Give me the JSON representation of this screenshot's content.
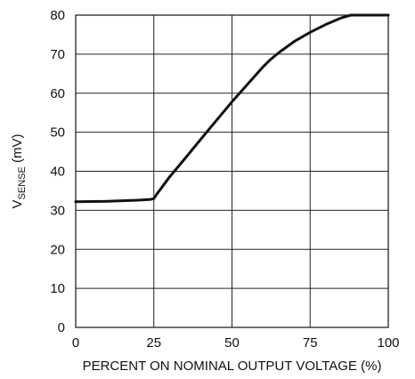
{
  "chart_data": {
    "type": "line",
    "xlabel": "PERCENT ON NOMINAL OUTPUT VOLTAGE (%)",
    "ylabel_main": "V",
    "ylabel_sub": "SENSE",
    "ylabel_unit": " (mV)",
    "xlim": [
      0,
      100
    ],
    "ylim": [
      0,
      80
    ],
    "x_ticks": [
      0,
      25,
      50,
      75,
      100
    ],
    "y_ticks": [
      0,
      10,
      20,
      30,
      40,
      50,
      60,
      70,
      80
    ],
    "x_tick_labels": [
      "0",
      "25",
      "50",
      "75",
      "100"
    ],
    "y_tick_labels": [
      "0",
      "10",
      "20",
      "30",
      "40",
      "50",
      "60",
      "70",
      "80"
    ],
    "grid": true,
    "series": [
      {
        "x": [
          0,
          10,
          20,
          24,
          25,
          26,
          30,
          35,
          40,
          45,
          50,
          55,
          60,
          62,
          65,
          70,
          75,
          80,
          85,
          88,
          90,
          95,
          100
        ],
        "y": [
          32.2,
          32.3,
          32.6,
          32.8,
          33.0,
          34.2,
          38.5,
          43.3,
          48.2,
          53.0,
          57.8,
          62.3,
          66.8,
          68.4,
          70.4,
          73.3,
          75.6,
          77.6,
          79.3,
          80.0,
          80.0,
          80.0,
          80.0
        ]
      }
    ]
  }
}
